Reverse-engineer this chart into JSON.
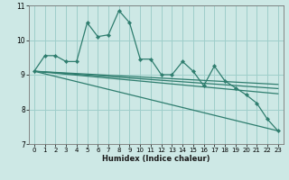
{
  "xlabel": "Humidex (Indice chaleur)",
  "xlim": [
    -0.5,
    23.5
  ],
  "ylim": [
    7,
    11
  ],
  "yticks": [
    7,
    8,
    9,
    10,
    11
  ],
  "xticks": [
    0,
    1,
    2,
    3,
    4,
    5,
    6,
    7,
    8,
    9,
    10,
    11,
    12,
    13,
    14,
    15,
    16,
    17,
    18,
    19,
    20,
    21,
    22,
    23
  ],
  "bg_color": "#cde8e5",
  "grid_color": "#9ececa",
  "line_color": "#2e7d6e",
  "main_line": {
    "x": [
      0,
      1,
      2,
      3,
      4,
      5,
      6,
      7,
      8,
      9,
      10,
      11,
      12,
      13,
      14,
      15,
      16,
      17,
      18,
      19,
      20,
      21,
      22,
      23
    ],
    "y": [
      9.1,
      9.55,
      9.55,
      9.38,
      9.38,
      10.5,
      10.1,
      10.15,
      10.85,
      10.5,
      9.45,
      9.45,
      9.0,
      9.0,
      9.38,
      9.1,
      8.68,
      9.25,
      8.82,
      8.62,
      8.42,
      8.18,
      7.72,
      7.38
    ]
  },
  "straight_lines": [
    {
      "x": [
        0,
        23
      ],
      "y": [
        9.1,
        8.45
      ]
    },
    {
      "x": [
        0,
        23
      ],
      "y": [
        9.1,
        8.6
      ]
    },
    {
      "x": [
        0,
        23
      ],
      "y": [
        9.1,
        8.72
      ]
    },
    {
      "x": [
        0,
        23
      ],
      "y": [
        9.1,
        7.38
      ]
    }
  ]
}
